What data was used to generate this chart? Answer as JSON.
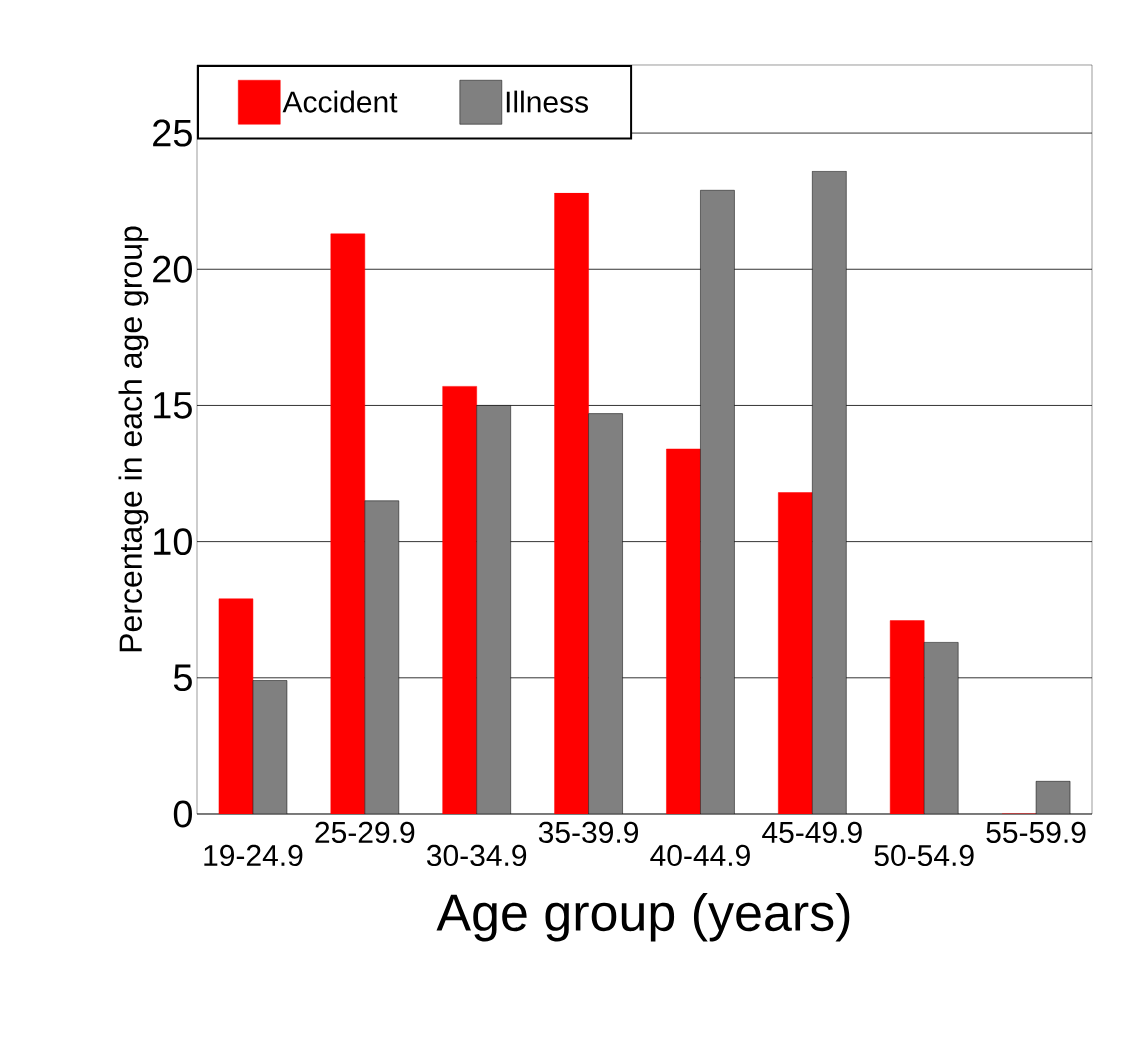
{
  "chart_data": {
    "type": "bar",
    "xlabel": "Age group (years)",
    "ylabel": "Percentage in each age group",
    "categories": [
      "19-24.9",
      "25-29.9",
      "30-34.9",
      "35-39.9",
      "40-44.9",
      "45-49.9",
      "50-54.9",
      "55-59.9"
    ],
    "series": [
      {
        "name": "Accident",
        "color": "#ff0000",
        "values": [
          7.9,
          21.3,
          15.7,
          22.8,
          13.4,
          11.8,
          7.1,
          0
        ]
      },
      {
        "name": "Illness",
        "color": "#808080",
        "values": [
          4.9,
          11.5,
          15.0,
          14.7,
          22.9,
          23.6,
          6.3,
          1.2
        ]
      }
    ],
    "ylim": [
      0,
      27.5
    ],
    "yticks": [
      0,
      5,
      10,
      15,
      20,
      25
    ],
    "grid": "y",
    "legend": "top left"
  }
}
